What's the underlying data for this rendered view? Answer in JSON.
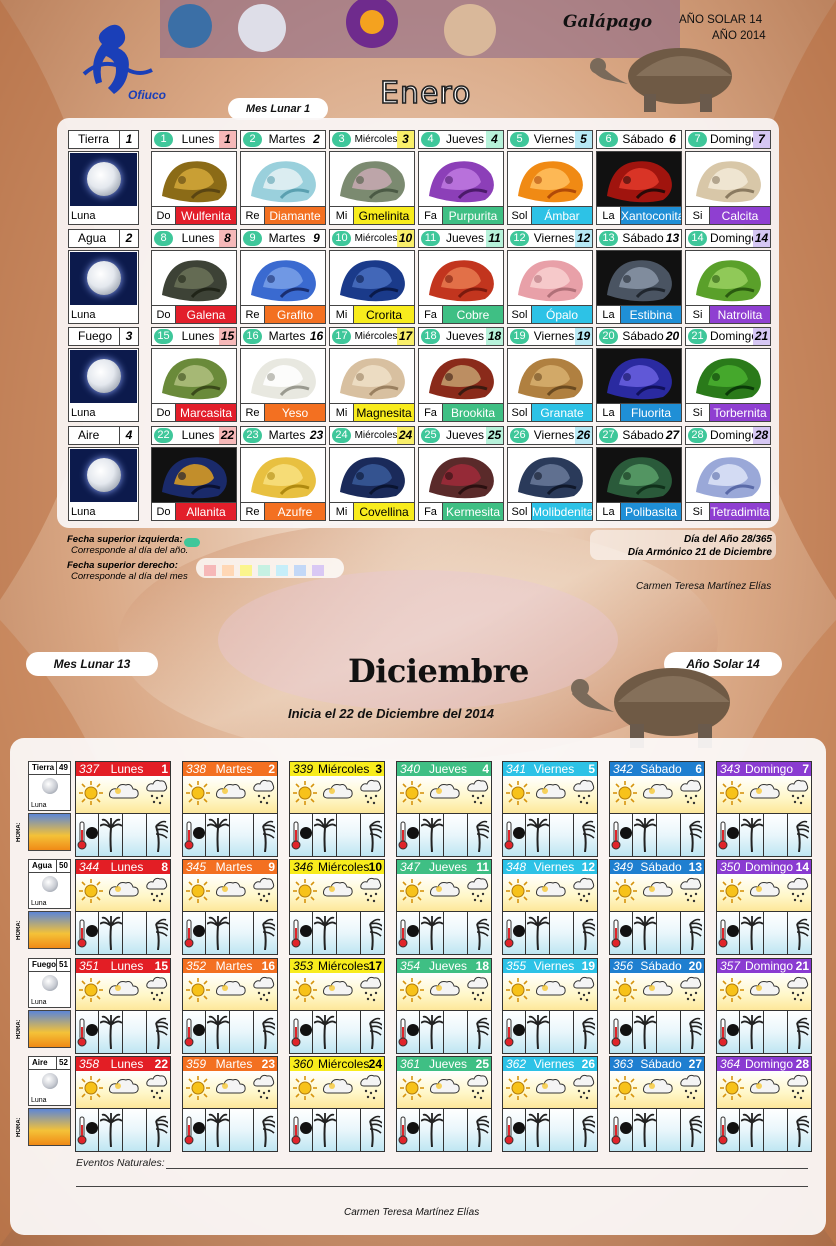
{
  "top": {
    "logo_label": "Ofiuco",
    "animal": "Galápago",
    "year_solar": "AÑO SOLAR 14",
    "year": "AÑO 2014",
    "mes_lunar_label": "Mes Lunar  1",
    "month_title": "Enero",
    "weeks": [
      {
        "element": "Tierra",
        "num": "1",
        "moon": "Luna",
        "days": [
          {
            "c": "1",
            "name": "Lunes",
            "d": "1",
            "dc": "#f6b8b8"
          },
          {
            "c": "2",
            "name": "Martes",
            "d": "2",
            "dc": "#ffffff"
          },
          {
            "c": "3",
            "name": "Miércoles",
            "d": "3",
            "dc": "#f9ef6a"
          },
          {
            "c": "4",
            "name": "Jueves",
            "d": "4",
            "dc": "#b7f2da"
          },
          {
            "c": "5",
            "name": "Viernes",
            "d": "5",
            "dc": "#b7e9f5"
          },
          {
            "c": "6",
            "name": "Sábado",
            "d": "6",
            "dc": "#ffffff"
          },
          {
            "c": "7",
            "name": "Domingo",
            "d": "7",
            "dc": "#d6c7f3"
          }
        ],
        "minerals": [
          {
            "note": "Do",
            "name": "Wulfenita",
            "bg": "#e21e2a",
            "fg": "#fff"
          },
          {
            "note": "Re",
            "name": "Diamante",
            "bg": "#f37021",
            "fg": "#fff"
          },
          {
            "note": "Mi",
            "name": "Gmelinita",
            "bg": "#f8ec1d",
            "fg": "#000"
          },
          {
            "note": "Fa",
            "name": "Purpurita",
            "bg": "#3fbf84",
            "fg": "#fff"
          },
          {
            "note": "Sol",
            "name": "Ámbar",
            "bg": "#2dc2e6",
            "fg": "#fff"
          },
          {
            "note": "La",
            "name": "Xantoconita",
            "bg": "#1f8fd6",
            "fg": "#fff"
          },
          {
            "note": "Si",
            "name": "Calcita",
            "bg": "#8f3fd1",
            "fg": "#fff"
          }
        ]
      },
      {
        "element": "Agua",
        "num": "2",
        "moon": "Luna",
        "days": [
          {
            "c": "8",
            "name": "Lunes",
            "d": "8",
            "dc": "#f6b8b8"
          },
          {
            "c": "9",
            "name": "Martes",
            "d": "9",
            "dc": "#ffffff"
          },
          {
            "c": "10",
            "name": "Miércoles",
            "d": "10",
            "dc": "#f9ef6a"
          },
          {
            "c": "11",
            "name": "Jueves",
            "d": "11",
            "dc": "#b7f2da"
          },
          {
            "c": "12",
            "name": "Viernes",
            "d": "12",
            "dc": "#b7e9f5"
          },
          {
            "c": "13",
            "name": "Sábado",
            "d": "13",
            "dc": "#ffffff"
          },
          {
            "c": "14",
            "name": "Domingo",
            "d": "14",
            "dc": "#d6c7f3"
          }
        ],
        "minerals": [
          {
            "note": "Do",
            "name": "Galena",
            "bg": "#e21e2a",
            "fg": "#fff"
          },
          {
            "note": "Re",
            "name": "Grafito",
            "bg": "#f37021",
            "fg": "#fff"
          },
          {
            "note": "Mi",
            "name": "Crorita",
            "bg": "#f8ec1d",
            "fg": "#000"
          },
          {
            "note": "Fa",
            "name": "Cobre",
            "bg": "#3fbf84",
            "fg": "#fff"
          },
          {
            "note": "Sol",
            "name": "Ópalo",
            "bg": "#2dc2e6",
            "fg": "#fff"
          },
          {
            "note": "La",
            "name": "Estibina",
            "bg": "#1f8fd6",
            "fg": "#fff"
          },
          {
            "note": "Si",
            "name": "Natrolita",
            "bg": "#8f3fd1",
            "fg": "#fff"
          }
        ]
      },
      {
        "element": "Fuego",
        "num": "3",
        "moon": "Luna",
        "days": [
          {
            "c": "15",
            "name": "Lunes",
            "d": "15",
            "dc": "#f6b8b8"
          },
          {
            "c": "16",
            "name": "Martes",
            "d": "16",
            "dc": "#ffffff"
          },
          {
            "c": "17",
            "name": "Miércoles",
            "d": "17",
            "dc": "#f9ef6a"
          },
          {
            "c": "18",
            "name": "Jueves",
            "d": "18",
            "dc": "#b7f2da"
          },
          {
            "c": "19",
            "name": "Viernes",
            "d": "19",
            "dc": "#b7e9f5"
          },
          {
            "c": "20",
            "name": "Sábado",
            "d": "20",
            "dc": "#ffffff"
          },
          {
            "c": "21",
            "name": "Domingo",
            "d": "21",
            "dc": "#d6c7f3"
          }
        ],
        "minerals": [
          {
            "note": "Do",
            "name": "Marcasita",
            "bg": "#e21e2a",
            "fg": "#fff"
          },
          {
            "note": "Re",
            "name": "Yeso",
            "bg": "#f37021",
            "fg": "#fff"
          },
          {
            "note": "Mi",
            "name": "Magnesita",
            "bg": "#f8ec1d",
            "fg": "#000"
          },
          {
            "note": "Fa",
            "name": "Brookita",
            "bg": "#3fbf84",
            "fg": "#fff"
          },
          {
            "note": "Sol",
            "name": "Granate",
            "bg": "#2dc2e6",
            "fg": "#fff"
          },
          {
            "note": "La",
            "name": "Fluorita",
            "bg": "#1f8fd6",
            "fg": "#fff"
          },
          {
            "note": "Si",
            "name": "Torbernita",
            "bg": "#8f3fd1",
            "fg": "#fff"
          }
        ]
      },
      {
        "element": "Aire",
        "num": "4",
        "moon": "Luna",
        "days": [
          {
            "c": "22",
            "name": "Lunes",
            "d": "22",
            "dc": "#f6b8b8"
          },
          {
            "c": "23",
            "name": "Martes",
            "d": "23",
            "dc": "#ffffff"
          },
          {
            "c": "24",
            "name": "Miércoles",
            "d": "24",
            "dc": "#f9ef6a"
          },
          {
            "c": "25",
            "name": "Jueves",
            "d": "25",
            "dc": "#b7f2da"
          },
          {
            "c": "26",
            "name": "Viernes",
            "d": "26",
            "dc": "#b7e9f5"
          },
          {
            "c": "27",
            "name": "Sábado",
            "d": "27",
            "dc": "#ffffff"
          },
          {
            "c": "28",
            "name": "Domingo",
            "d": "28",
            "dc": "#d6c7f3"
          }
        ],
        "minerals": [
          {
            "note": "Do",
            "name": "Allanita",
            "bg": "#e21e2a",
            "fg": "#fff"
          },
          {
            "note": "Re",
            "name": "Azufre",
            "bg": "#f37021",
            "fg": "#fff"
          },
          {
            "note": "Mi",
            "name": "Covellina",
            "bg": "#f8ec1d",
            "fg": "#000"
          },
          {
            "note": "Fa",
            "name": "Kermesita",
            "bg": "#3fbf84",
            "fg": "#fff"
          },
          {
            "note": "Sol",
            "name": "Molibdenita",
            "bg": "#2dc2e6",
            "fg": "#fff"
          },
          {
            "note": "La",
            "name": "Polibasita",
            "bg": "#1f8fd6",
            "fg": "#fff"
          },
          {
            "note": "Si",
            "name": "Tetradimita",
            "bg": "#8f3fd1",
            "fg": "#fff"
          }
        ]
      }
    ],
    "legend": {
      "l1_title": "Fecha superior izquierda:",
      "l1_desc": "Corresponde al día del año.",
      "l2_title": "Fecha superior derecho:",
      "l2_desc": "Corresponde al día del mes",
      "right1": "Día del Año 28/365",
      "right2": "Día Armónico 21 de Diciembre"
    },
    "author": "Carmen Teresa Martínez Elías"
  },
  "bottom": {
    "mes_lunar_label": "Mes Lunar  13",
    "year_solar": "Año Solar 14",
    "month_title": "Diciembre",
    "subtitle": "Inicia el 22 de Diciembre del 2014",
    "hora": "HORA:",
    "weeks": [
      {
        "element": "Tierra",
        "num": "49",
        "moon": "Luna",
        "days": [
          {
            "n": "337",
            "w": "Lunes",
            "d": "1"
          },
          {
            "n": "338",
            "w": "Martes",
            "d": "2"
          },
          {
            "n": "339",
            "w": "Miércoles",
            "d": "3"
          },
          {
            "n": "340",
            "w": "Jueves",
            "d": "4"
          },
          {
            "n": "341",
            "w": "Viernes",
            "d": "5"
          },
          {
            "n": "342",
            "w": "Sábado",
            "d": "6"
          },
          {
            "n": "343",
            "w": "Domingo",
            "d": "7"
          }
        ]
      },
      {
        "element": "Agua",
        "num": "50",
        "moon": "Luna",
        "days": [
          {
            "n": "344",
            "w": "Lunes",
            "d": "8"
          },
          {
            "n": "345",
            "w": "Martes",
            "d": "9"
          },
          {
            "n": "346",
            "w": "Miércoles",
            "d": "10"
          },
          {
            "n": "347",
            "w": "Jueves",
            "d": "11"
          },
          {
            "n": "348",
            "w": "Viernes",
            "d": "12"
          },
          {
            "n": "349",
            "w": "Sábado",
            "d": "13"
          },
          {
            "n": "350",
            "w": "Domingo",
            "d": "14"
          }
        ]
      },
      {
        "element": "Fuego",
        "num": "51",
        "moon": "Luna",
        "days": [
          {
            "n": "351",
            "w": "Lunes",
            "d": "15"
          },
          {
            "n": "352",
            "w": "Martes",
            "d": "16"
          },
          {
            "n": "353",
            "w": "Miércoles",
            "d": "17"
          },
          {
            "n": "354",
            "w": "Jueves",
            "d": "18"
          },
          {
            "n": "355",
            "w": "Viernes",
            "d": "19"
          },
          {
            "n": "356",
            "w": "Sábado",
            "d": "20"
          },
          {
            "n": "357",
            "w": "Domingo",
            "d": "21"
          }
        ]
      },
      {
        "element": "Aire",
        "num": "52",
        "moon": "Luna",
        "days": [
          {
            "n": "358",
            "w": "Lunes",
            "d": "22"
          },
          {
            "n": "359",
            "w": "Martes",
            "d": "23"
          },
          {
            "n": "360",
            "w": "Miércoles",
            "d": "24"
          },
          {
            "n": "361",
            "w": "Jueves",
            "d": "25"
          },
          {
            "n": "362",
            "w": "Viernes",
            "d": "26"
          },
          {
            "n": "363",
            "w": "Sábado",
            "d": "27"
          },
          {
            "n": "364",
            "w": "Domingo",
            "d": "28"
          }
        ]
      }
    ],
    "day_colors": [
      {
        "bg": "#e31e25",
        "fg": "#ffffff"
      },
      {
        "bg": "#f37021",
        "fg": "#ffffff"
      },
      {
        "bg": "#f8ec1d",
        "fg": "#000000"
      },
      {
        "bg": "#3fbf84",
        "fg": "#ffffff"
      },
      {
        "bg": "#2dc2e6",
        "fg": "#ffffff"
      },
      {
        "bg": "#1f7fd0",
        "fg": "#ffffff"
      },
      {
        "bg": "#8a3bd1",
        "fg": "#ffffff"
      }
    ],
    "events_label": "Eventos Naturales:",
    "author": "Carmen Teresa Martínez Elías"
  },
  "colors": {
    "accent_green": "#3fc79a",
    "legend_swatches": [
      "#f6b8b8",
      "#ffd7b5",
      "#fbf58d",
      "#c6f1e2",
      "#c6eef9",
      "#c3d8f7",
      "#d9c8f4"
    ]
  }
}
